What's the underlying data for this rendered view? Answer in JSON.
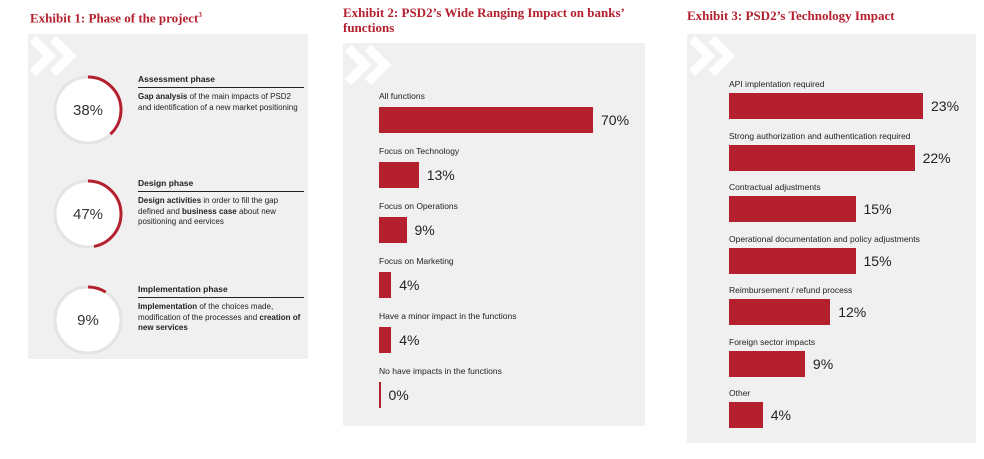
{
  "exhibit1": {
    "title": "Exhibit 1: Phase of the project",
    "title_sup": "3",
    "phases": [
      {
        "pct_label": "38%",
        "value": 38,
        "title": "Assessment phase",
        "desc_parts": [
          {
            "bold": true,
            "text": "Gap analysis"
          },
          {
            "bold": false,
            "text": " of the main impacts of PSD2 and identification of a new market positioning"
          }
        ]
      },
      {
        "pct_label": "47%",
        "value": 47,
        "title": "Design phase",
        "desc_parts": [
          {
            "bold": true,
            "text": "Design activities"
          },
          {
            "bold": false,
            "text": " in order to fill the gap defined and "
          },
          {
            "bold": true,
            "text": "business case"
          },
          {
            "bold": false,
            "text": " about new positioning and eervices"
          }
        ]
      },
      {
        "pct_label": "9%",
        "value": 9,
        "title": "Implementation phase",
        "desc_parts": [
          {
            "bold": true,
            "text": "Implementation"
          },
          {
            "bold": false,
            "text": " of the choices made, modification of the processes and "
          },
          {
            "bold": true,
            "text": "creation of new services"
          }
        ]
      }
    ]
  },
  "exhibit2": {
    "title_line1": "Exhibit 2: PSD2’s Wide Ranging Impact on banks’",
    "title_line2": "functions"
  },
  "exhibit3": {
    "title": "Exhibit 3: PSD2’s Technology Impact"
  },
  "colors": {
    "accent": "#b5202e",
    "panel": "#f0f0f0",
    "ring_track": "#ffffff"
  },
  "chart_data": [
    {
      "type": "bar",
      "orientation": "horizontal",
      "title": "Exhibit 2: PSD2’s Wide Ranging Impact on banks’ functions",
      "categories": [
        "All functions",
        "Focus on Technology",
        "Focus on Operations",
        "Focus on Marketing",
        "Have a minor impact in the functions",
        "No have impacts in the functions"
      ],
      "values": [
        70,
        13,
        9,
        4,
        4,
        0
      ],
      "value_labels": [
        "70%",
        "13%",
        "9%",
        "4%",
        "4%",
        "0%"
      ],
      "xlim": [
        0,
        100
      ]
    },
    {
      "type": "bar",
      "orientation": "horizontal",
      "title": "Exhibit 3: PSD2’s Technology Impact",
      "categories": [
        "API implentation required",
        "Strong authorization and authentication required",
        "Contractual adjustments",
        "Operational documentation and policy adjustments",
        "Reimbursement / refund process",
        "Foreign sector impacts",
        "Other"
      ],
      "values": [
        23,
        22,
        15,
        15,
        12,
        9,
        4
      ],
      "value_labels": [
        "23%",
        "22%",
        "15%",
        "15%",
        "12%",
        "9%",
        "4%"
      ],
      "xlim": [
        0,
        100
      ]
    }
  ]
}
